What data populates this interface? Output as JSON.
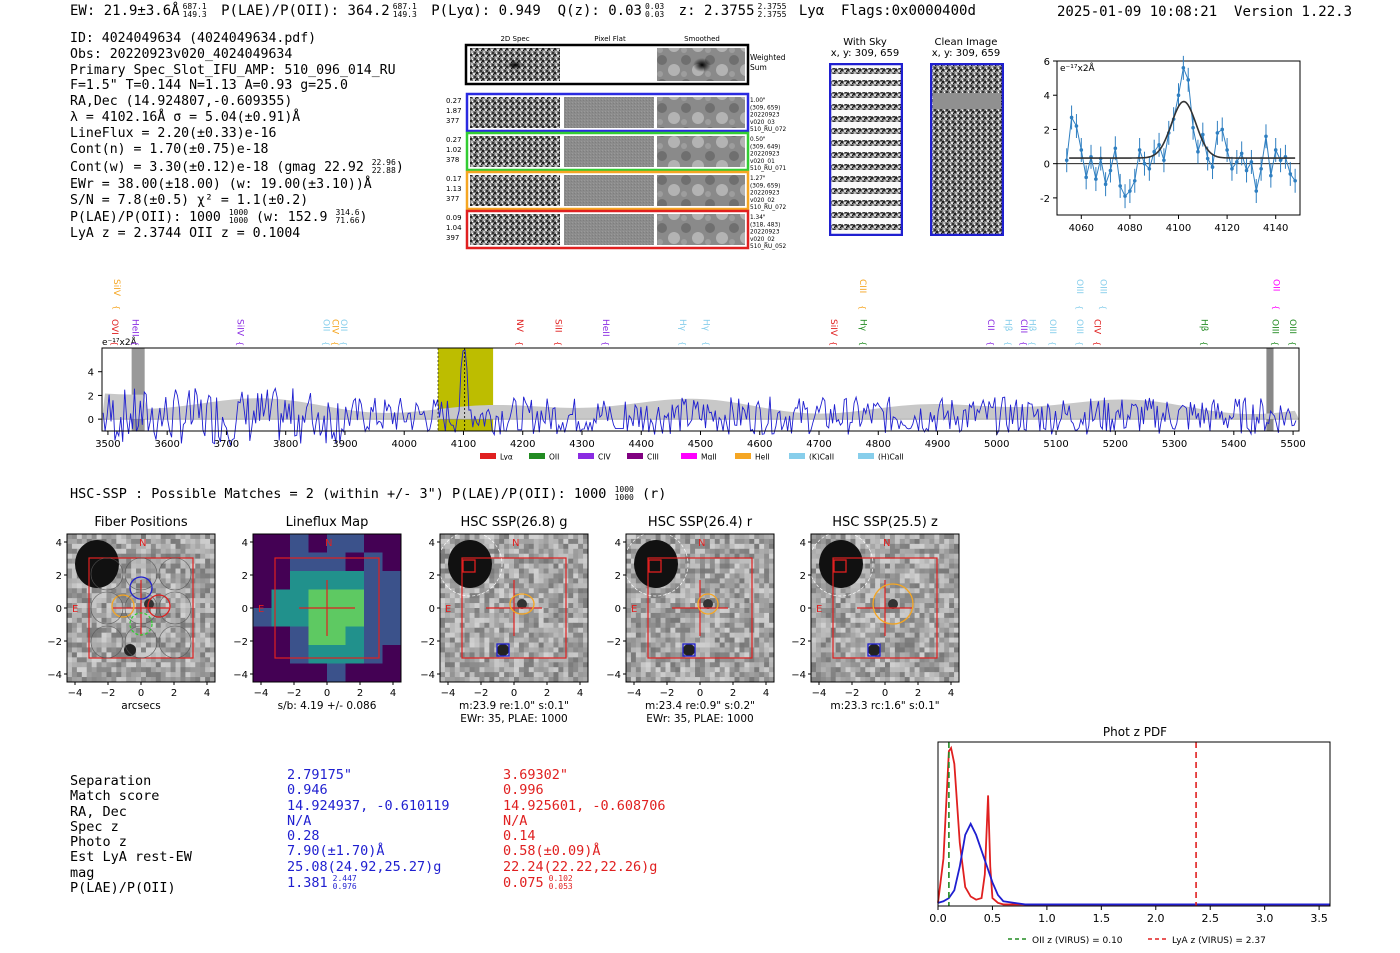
{
  "header": {
    "ew": "EW: 21.9±3.6Å",
    "ew_sup": "687.1",
    "ew_sub": "149.3",
    "plae": "P(LAE)/P(OII): 364.2",
    "plya": "P(Lyα): 0.949",
    "qz": "Q(z): 0.03",
    "qz_sup": "0.03",
    "qz_sub": "0.03",
    "z": "z: 2.3755",
    "z_sup": "2.3755",
    "z_sub": "2.3755",
    "z_line": "Lyα",
    "flags": "Flags:0x0000400d",
    "timestamp": "2025-01-09 10:08:21",
    "version": "Version 1.22.3"
  },
  "info": {
    "id": "ID: 4024049634 (4024049634.pdf)",
    "obs": "Obs: 20220923v020_4024049634",
    "primary": "Primary Spec_Slot_IFU_AMP: 510_096_014_RU",
    "fwhm": "F=1.5\"  T=0.144  N=1.13  A=0.93  g=25.0",
    "radec": "RA,Dec (14.924807,-0.609355)",
    "lambda": "λ = 4102.16Å  σ = 5.04(±0.91)Å",
    "lineflux": "LineFlux = 2.20(±0.33)e-16",
    "contn": "Cont(n) = 1.70(±0.75)e-18",
    "contw": "Cont(w) = 3.30(±0.12)e-18 (gmag 22.92",
    "contw_sup": "22.96",
    "contw_sub": "22.88",
    "ewr": "EWr = 38.00(±18.00) (w: 19.00(±3.10))Å",
    "sn": "S/N = 7.8(±0.5)  χ² = 1.1(±0.2)",
    "plae2": "P(LAE)/P(OII): 1000",
    "plae2_sup": "1000",
    "plae2_sub": "1000",
    "plae2_w": "(w: 152.9",
    "plae2_w_sup": "314.6",
    "plae2_w_sub": "71.66",
    "lyaz": "LyA z = 2.3744  OII z = 0.1004"
  },
  "cutouts": {
    "col_titles": [
      "2D Spec",
      "Pixel Flat",
      "Smoothed"
    ],
    "weighted_label": "Weighted Sum",
    "rows": [
      {
        "left": [
          "0.27",
          "1.87",
          "377"
        ],
        "right": [
          "1.00\"",
          "(309, 659)",
          "20220923",
          "v020_03",
          "510_RU_072"
        ],
        "color": "#2a2ae0"
      },
      {
        "left": [
          "0.27",
          "1.02",
          "378"
        ],
        "right": [
          "0.50\"",
          "(309, 649)",
          "20220923",
          "v020_01",
          "510_RU_071"
        ],
        "color": "#33cc33"
      },
      {
        "left": [
          "0.17",
          "1.13",
          "377"
        ],
        "right": [
          "1.27\"",
          "(309, 659)",
          "20220923",
          "v020_02",
          "510_RU_072"
        ],
        "color": "#f5a623"
      },
      {
        "left": [
          "0.09",
          "1.04",
          "397"
        ],
        "right": [
          "1.34\"",
          "(318, 483)",
          "20220923",
          "v020_02",
          "510_RU_052"
        ],
        "color": "#e02020"
      }
    ]
  },
  "sky": {
    "with_sky_title": "With Sky",
    "with_sky_coords": "x, y: 309, 659",
    "clean_title": "Clean Image",
    "clean_coords": "x, y: 309, 659"
  },
  "chart_data": [
    {
      "type": "line",
      "title": "",
      "ylabel": "e⁻¹⁷x2Å",
      "xlim": [
        4050,
        4150
      ],
      "ylim": [
        -3,
        6
      ],
      "xticks": [
        4060,
        4080,
        4100,
        4120,
        4140
      ],
      "yticks": [
        6,
        4,
        2,
        0,
        -2
      ],
      "series": [
        {
          "name": "data",
          "x": [
            4054,
            4056,
            4058,
            4060,
            4062,
            4064,
            4066,
            4068,
            4070,
            4072,
            4074,
            4076,
            4078,
            4080,
            4082,
            4084,
            4086,
            4088,
            4090,
            4092,
            4094,
            4096,
            4098,
            4100,
            4102,
            4104,
            4106,
            4108,
            4110,
            4112,
            4114,
            4116,
            4118,
            4120,
            4122,
            4124,
            4126,
            4128,
            4130,
            4132,
            4134,
            4136,
            4138,
            4140,
            4142,
            4144,
            4146,
            4148
          ],
          "y": [
            0.2,
            2.7,
            2.2,
            0.8,
            -0.8,
            0.4,
            -0.9,
            0.3,
            -1.2,
            -0.4,
            0.9,
            -1.3,
            -1.9,
            -1.6,
            -1.0,
            0.8,
            0.0,
            -0.3,
            0.7,
            1.1,
            0.2,
            1.8,
            2.6,
            4.0,
            5.6,
            4.9,
            2.1,
            0.7,
            1.7,
            0.3,
            -0.2,
            1.8,
            2.0,
            0.8,
            -0.3,
            0.1,
            0.6,
            -0.4,
            0.1,
            -1.6,
            -0.3,
            1.6,
            -0.7,
            0.8,
            0.2,
            0.4,
            -0.6,
            -1.0
          ]
        },
        {
          "name": "gaussian fit",
          "center": 4102.16,
          "sigma": 5.04,
          "amplitude": 3.3,
          "continuum": 0.33
        }
      ]
    },
    {
      "type": "line",
      "title": "",
      "ylabel": "e⁻¹⁷x2Å",
      "xlim": [
        3490,
        5510
      ],
      "ylim": [
        -1,
        6
      ],
      "xticks": [
        3500,
        3600,
        3700,
        3800,
        3900,
        4000,
        4100,
        4200,
        4300,
        4400,
        4500,
        4600,
        4700,
        4800,
        4900,
        5000,
        5100,
        5200,
        5300,
        5400,
        5500
      ],
      "yticks": [
        4,
        2,
        0
      ],
      "highlight_range": [
        4057,
        4150
      ],
      "emission_line": 4102,
      "line_ids": [
        {
          "name": "OVI",
          "x": 3502,
          "color": "#e02020"
        },
        {
          "name": "SiIV",
          "x": 3505,
          "color": "#f5a623",
          "high": true
        },
        {
          "name": "HeII",
          "x": 3536,
          "color": "#8a2be2"
        },
        {
          "name": "SiIV",
          "x": 3714,
          "color": "#8a2be2"
        },
        {
          "name": "OII",
          "x": 3859,
          "color": "#87ceeb"
        },
        {
          "name": "CIV",
          "x": 3874,
          "color": "#f5a623"
        },
        {
          "name": "OII",
          "x": 3888,
          "color": "#87ceeb"
        },
        {
          "name": "NV",
          "x": 4185,
          "color": "#e02020"
        },
        {
          "name": "SiII",
          "x": 4250,
          "color": "#e02020"
        },
        {
          "name": "HeII",
          "x": 4330,
          "color": "#8a2be2"
        },
        {
          "name": "Hγ",
          "x": 4460,
          "color": "#87ceeb"
        },
        {
          "name": "Hγ",
          "x": 4500,
          "color": "#87ceeb"
        },
        {
          "name": "SiIV",
          "x": 4715,
          "color": "#e02020"
        },
        {
          "name": "CIII",
          "x": 4764,
          "color": "#f5a623",
          "high": true
        },
        {
          "name": "Hγ",
          "x": 4765,
          "color": "#228b22"
        },
        {
          "name": "CII",
          "x": 4980,
          "color": "#8a2be2"
        },
        {
          "name": "Hβ",
          "x": 5010,
          "color": "#87ceeb"
        },
        {
          "name": "CIII",
          "x": 5036,
          "color": "#8a2be2"
        },
        {
          "name": "Hβ",
          "x": 5050,
          "color": "#87ceeb"
        },
        {
          "name": "OIII",
          "x": 5085,
          "color": "#87ceeb"
        },
        {
          "name": "OIII",
          "x": 5130,
          "color": "#87ceeb"
        },
        {
          "name": "OIII",
          "x": 5130,
          "color": "#87ceeb",
          "high": true
        },
        {
          "name": "CIV",
          "x": 5160,
          "color": "#e02020"
        },
        {
          "name": "OIII",
          "x": 5170,
          "color": "#87ceeb",
          "high": true
        },
        {
          "name": "Hβ",
          "x": 5340,
          "color": "#228b22"
        },
        {
          "name": "OIII",
          "x": 5460,
          "color": "#228b22"
        },
        {
          "name": "OII",
          "x": 5462,
          "color": "#ff00ff",
          "high": true
        },
        {
          "name": "OIII",
          "x": 5490,
          "color": "#228b22"
        }
      ],
      "legend": [
        {
          "name": "Lyα",
          "color": "#e02020"
        },
        {
          "name": "OII",
          "color": "#228b22"
        },
        {
          "name": "CIV",
          "color": "#8a2be2"
        },
        {
          "name": "CIII",
          "color": "#800080"
        },
        {
          "name": "MgII",
          "color": "#ff00ff"
        },
        {
          "name": "HeII",
          "color": "#f5a623"
        },
        {
          "name": "(K)CaII",
          "color": "#87ceeb"
        },
        {
          "name": "(H)CaII",
          "color": "#87ceeb"
        }
      ]
    },
    {
      "type": "line",
      "title": "Phot z PDF",
      "xlim": [
        0,
        3.6
      ],
      "xticks": [
        0.0,
        0.5,
        1.0,
        1.5,
        2.0,
        2.5,
        3.0,
        3.5
      ],
      "series": [
        {
          "name": "red pdf",
          "color": "#e02020",
          "x": [
            0,
            0.05,
            0.1,
            0.12,
            0.15,
            0.2,
            0.25,
            0.3,
            0.35,
            0.4,
            0.43,
            0.46,
            0.48,
            0.5,
            0.55,
            0.6,
            1.0,
            3.6
          ],
          "y": [
            0.02,
            0.3,
            0.98,
            1.0,
            0.9,
            0.4,
            0.12,
            0.06,
            0.04,
            0.05,
            0.2,
            0.7,
            0.25,
            0.05,
            0.02,
            0.01,
            0.01,
            0.01
          ]
        },
        {
          "name": "blue pdf",
          "color": "#1f1fd0",
          "x": [
            0,
            0.05,
            0.1,
            0.15,
            0.2,
            0.25,
            0.3,
            0.35,
            0.4,
            0.45,
            0.5,
            0.55,
            0.6,
            0.7,
            0.8,
            1.0,
            3.6
          ],
          "y": [
            0.02,
            0.03,
            0.05,
            0.1,
            0.25,
            0.45,
            0.52,
            0.45,
            0.35,
            0.25,
            0.15,
            0.07,
            0.03,
            0.02,
            0.01,
            0.01,
            0.01
          ]
        }
      ],
      "vlines": [
        {
          "name": "OII z (VIRUS) = 0.10",
          "x": 0.1,
          "color": "#228b22"
        },
        {
          "name": "LyA z (VIRUS) = 2.37",
          "x": 2.37,
          "color": "#e02020"
        }
      ]
    }
  ],
  "hsc": {
    "title": "HSC-SSP : Possible Matches = 2 (within +/- 3\")  P(LAE)/P(OII): 1000",
    "title_sup": "1000",
    "title_sub": "1000",
    "title_end": "(r)",
    "panels": [
      {
        "title": "Fiber Positions",
        "caption1": "arcsecs",
        "caption2": ""
      },
      {
        "title": "Lineflux Map",
        "caption1": "s/b: 4.19 +/- 0.086",
        "caption2": ""
      },
      {
        "title": "HSC SSP(26.8) g",
        "caption1": "m:23.9  re:1.0\"  s:0.1\"",
        "caption2": "EWr: 35, PLAE: 1000"
      },
      {
        "title": "HSC SSP(26.4) r",
        "caption1": "m:23.4  re:0.9\"  s:0.2\"",
        "caption2": "EWr: 35, PLAE: 1000"
      },
      {
        "title": "HSC SSP(25.5) z",
        "caption1": "m:23.3 rc:1.6\"  s:0.1\"",
        "caption2": ""
      }
    ],
    "axis_ticks": [
      "−4",
      "−2",
      "0",
      "2",
      "4"
    ],
    "n_label": "N",
    "e_label": "E"
  },
  "match_table": {
    "labels": [
      "Separation",
      "Match score",
      "RA, Dec",
      "Spec z",
      "Photo z",
      "Est LyA rest-EW",
      "mag",
      "P(LAE)/P(OII)"
    ],
    "col1": [
      "2.79175\"",
      "0.946",
      "14.924937, -0.610119",
      "N/A",
      "0.28",
      "7.90(±1.70)Å",
      "25.08(24.92,25.27)g",
      "1.381"
    ],
    "col1_plae_sup": "2.447",
    "col1_plae_sub": "0.976",
    "col2": [
      "3.69302\"",
      "0.996",
      "14.925601, -0.608706",
      "N/A",
      "0.14",
      "0.58(±0.09)Å",
      "22.24(22.22,22.26)g",
      "0.075"
    ],
    "col2_plae_sup": "0.102",
    "col2_plae_sub": "0.053",
    "col1_color": "#1f1fd0",
    "col2_color": "#e02020"
  }
}
